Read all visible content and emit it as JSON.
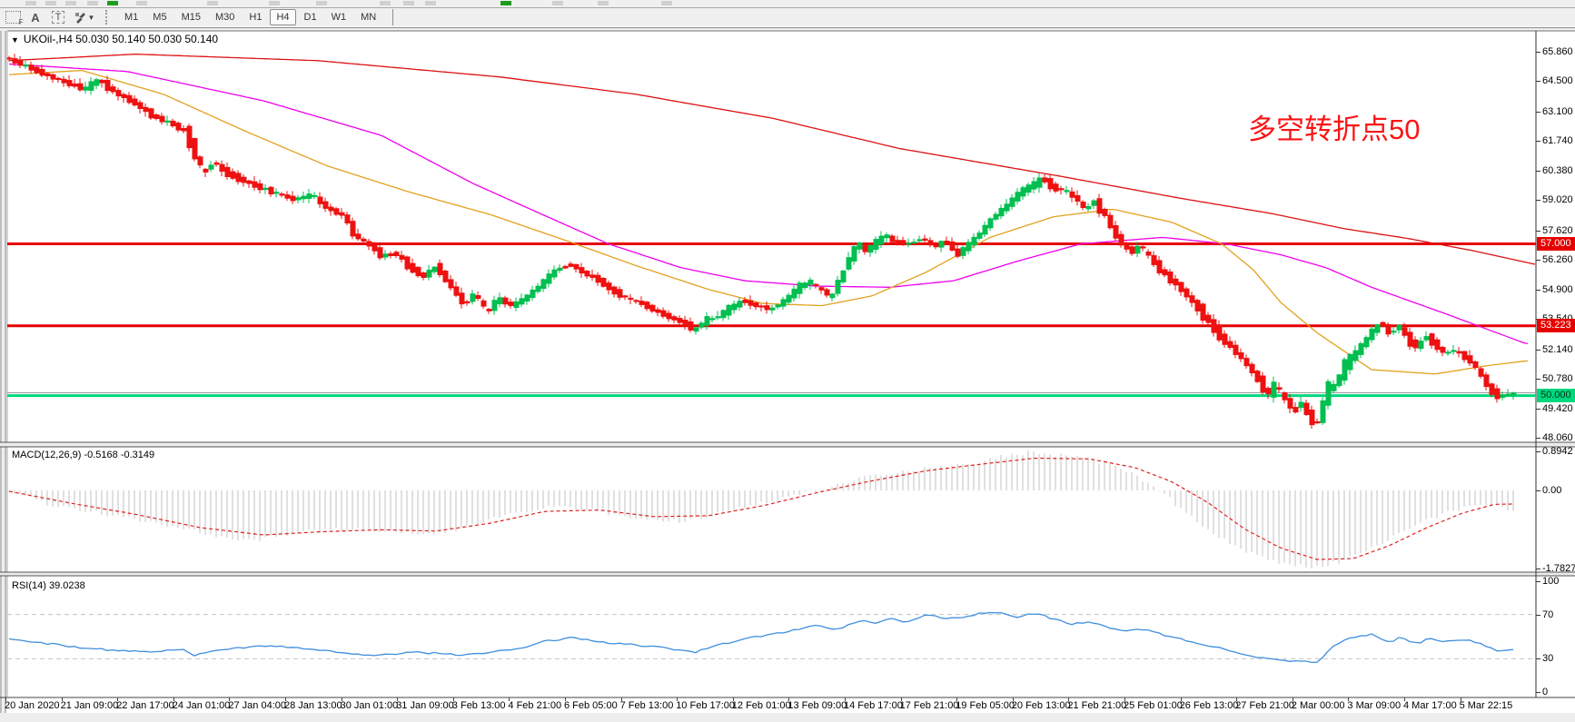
{
  "toolbar": {
    "tools": [
      {
        "name": "chart-template-tool",
        "glyph": "F"
      },
      {
        "name": "label-tool",
        "glyph": "A"
      },
      {
        "name": "text-tool",
        "glyph": "T"
      },
      {
        "name": "arrows-tool",
        "glyph": ""
      }
    ],
    "timeframes": [
      "M1",
      "M5",
      "M15",
      "M30",
      "H1",
      "H4",
      "D1",
      "W1",
      "MN"
    ],
    "active_timeframe": "H4"
  },
  "chart": {
    "title_text": "UKOil-,H4  50.030 50.140 50.030 50.140",
    "annotation_text": "多空转折点50",
    "y_ticks": [
      {
        "label": "65.860",
        "v": 65.86
      },
      {
        "label": "64.500",
        "v": 64.5
      },
      {
        "label": "63.100",
        "v": 63.1
      },
      {
        "label": "61.740",
        "v": 61.74
      },
      {
        "label": "60.380",
        "v": 60.38
      },
      {
        "label": "59.020",
        "v": 59.02
      },
      {
        "label": "57.620",
        "v": 57.62
      },
      {
        "label": "56.260",
        "v": 56.26
      },
      {
        "label": "54.900",
        "v": 54.9
      },
      {
        "label": "53.540",
        "v": 53.54
      },
      {
        "label": "52.140",
        "v": 52.14
      },
      {
        "label": "50.780",
        "v": 50.78
      },
      {
        "label": "49.420",
        "v": 49.42
      },
      {
        "label": "48.060",
        "v": 48.06
      }
    ],
    "levels": [
      {
        "label": "57.000",
        "v": 57.0,
        "color": "#e60000",
        "text_color": "#ffffff"
      },
      {
        "label": "53.223",
        "v": 53.223,
        "color": "#e60000",
        "text_color": "#ffffff"
      },
      {
        "label": "50.000",
        "v": 50.0,
        "color": "#00d87d",
        "text_color": "#00331a"
      }
    ],
    "bid_line": {
      "v": 50.14,
      "color": "#9a9a9a"
    }
  },
  "macd": {
    "label": "MACD(12,26,9) -0.5168 -0.3149",
    "y_ticks": [
      {
        "label": "0.8942",
        "v": 0.8942
      },
      {
        "label": "0.00",
        "v": 0
      },
      {
        "label": "-1.7827",
        "v": -1.7827
      }
    ]
  },
  "rsi": {
    "label": "RSI(14) 39.0238",
    "y_ticks": [
      {
        "label": "100",
        "v": 100
      },
      {
        "label": "70",
        "v": 70
      },
      {
        "label": "30",
        "v": 30
      },
      {
        "label": "0",
        "v": 0
      }
    ],
    "dashed_levels": [
      70,
      30
    ]
  },
  "time_axis": [
    "20 Jan 2020",
    "21 Jan 09:00",
    "22 Jan 17:00",
    "24 Jan 01:00",
    "27 Jan 04:00",
    "28 Jan 13:00",
    "30 Jan 01:00",
    "31 Jan 09:00",
    "3 Feb 13:00",
    "4 Feb 21:00",
    "6 Feb 05:00",
    "7 Feb 13:00",
    "10 Feb 17:00",
    "12 Feb 01:00",
    "13 Feb 09:00",
    "14 Feb 17:00",
    "17 Feb 21:00",
    "19 Feb 05:00",
    "20 Feb 13:00",
    "21 Feb 21:00",
    "25 Feb 01:00",
    "26 Feb 13:00",
    "27 Feb 21:00",
    "2 Mar 00:00",
    "3 Mar 09:00",
    "4 Mar 17:00",
    "5 Mar 22:15"
  ],
  "colors": {
    "candle_up": "#00bf50",
    "candle_down": "#ee1111",
    "ma_fast": "#e3a11e",
    "ma_mid": "#ee00ee",
    "ma_slow": "#dd1111",
    "macd_hist": "#c2c2c2",
    "macd_signal": "#e02020",
    "rsi_line": "#3f8ede",
    "rsi_dash": "#c4c4c4"
  },
  "chart_data": {
    "type": "candlestick",
    "symbol_period": "UKOil-,H4",
    "ohlc_current": {
      "open": 50.03,
      "high": 50.14,
      "low": 50.03,
      "close": 50.14
    },
    "price_path_anchors": [
      [
        10,
        65.55
      ],
      [
        30,
        65.2
      ],
      [
        55,
        64.75
      ],
      [
        80,
        64.35
      ],
      [
        95,
        64.15
      ],
      [
        110,
        64.55
      ],
      [
        130,
        63.95
      ],
      [
        150,
        63.5
      ],
      [
        170,
        62.9
      ],
      [
        190,
        62.55
      ],
      [
        205,
        62.2
      ],
      [
        215,
        61.3
      ],
      [
        225,
        60.35
      ],
      [
        238,
        60.7
      ],
      [
        252,
        60.25
      ],
      [
        268,
        59.95
      ],
      [
        285,
        59.65
      ],
      [
        305,
        59.35
      ],
      [
        325,
        59.05
      ],
      [
        345,
        59.25
      ],
      [
        362,
        58.65
      ],
      [
        380,
        58.3
      ],
      [
        392,
        57.4
      ],
      [
        408,
        56.95
      ],
      [
        422,
        56.45
      ],
      [
        438,
        56.55
      ],
      [
        452,
        55.95
      ],
      [
        468,
        55.5
      ],
      [
        482,
        55.95
      ],
      [
        498,
        55.05
      ],
      [
        512,
        54.25
      ],
      [
        524,
        54.65
      ],
      [
        538,
        53.95
      ],
      [
        552,
        54.45
      ],
      [
        566,
        54.15
      ],
      [
        582,
        54.55
      ],
      [
        598,
        55.15
      ],
      [
        614,
        55.8
      ],
      [
        630,
        56.05
      ],
      [
        645,
        55.65
      ],
      [
        660,
        55.35
      ],
      [
        676,
        54.85
      ],
      [
        692,
        54.5
      ],
      [
        708,
        54.25
      ],
      [
        724,
        53.9
      ],
      [
        740,
        53.6
      ],
      [
        755,
        53.35
      ],
      [
        766,
        53.05
      ],
      [
        778,
        53.45
      ],
      [
        792,
        53.65
      ],
      [
        806,
        54.05
      ],
      [
        820,
        54.35
      ],
      [
        835,
        54.15
      ],
      [
        850,
        54.0
      ],
      [
        865,
        54.35
      ],
      [
        880,
        54.95
      ],
      [
        893,
        55.25
      ],
      [
        905,
        54.9
      ],
      [
        916,
        54.6
      ],
      [
        926,
        55.3
      ],
      [
        936,
        56.3
      ],
      [
        946,
        56.9
      ],
      [
        956,
        56.7
      ],
      [
        966,
        57.05
      ],
      [
        976,
        57.35
      ],
      [
        988,
        57.1
      ],
      [
        1002,
        57.0
      ],
      [
        1016,
        57.25
      ],
      [
        1030,
        56.9
      ],
      [
        1044,
        57.1
      ],
      [
        1056,
        56.5
      ],
      [
        1068,
        56.95
      ],
      [
        1082,
        57.55
      ],
      [
        1096,
        58.25
      ],
      [
        1110,
        58.75
      ],
      [
        1124,
        59.35
      ],
      [
        1138,
        59.7
      ],
      [
        1150,
        59.95
      ],
      [
        1162,
        59.6
      ],
      [
        1174,
        59.45
      ],
      [
        1186,
        59.1
      ],
      [
        1196,
        58.6
      ],
      [
        1206,
        58.95
      ],
      [
        1218,
        58.35
      ],
      [
        1228,
        57.55
      ],
      [
        1238,
        56.95
      ],
      [
        1248,
        56.65
      ],
      [
        1258,
        56.85
      ],
      [
        1268,
        56.35
      ],
      [
        1278,
        55.85
      ],
      [
        1288,
        55.45
      ],
      [
        1298,
        55.1
      ],
      [
        1308,
        54.65
      ],
      [
        1318,
        54.15
      ],
      [
        1328,
        53.65
      ],
      [
        1338,
        53.1
      ],
      [
        1348,
        52.6
      ],
      [
        1358,
        52.2
      ],
      [
        1368,
        51.75
      ],
      [
        1378,
        51.25
      ],
      [
        1388,
        50.65
      ],
      [
        1398,
        50.1
      ],
      [
        1406,
        50.45
      ],
      [
        1416,
        49.85
      ],
      [
        1426,
        49.35
      ],
      [
        1434,
        49.65
      ],
      [
        1444,
        49.0
      ],
      [
        1452,
        48.7
      ],
      [
        1462,
        50.1
      ],
      [
        1472,
        50.55
      ],
      [
        1482,
        51.35
      ],
      [
        1492,
        51.85
      ],
      [
        1502,
        52.35
      ],
      [
        1512,
        52.95
      ],
      [
        1522,
        53.3
      ],
      [
        1532,
        52.9
      ],
      [
        1542,
        53.2
      ],
      [
        1552,
        52.6
      ],
      [
        1562,
        52.25
      ],
      [
        1572,
        52.75
      ],
      [
        1582,
        52.35
      ],
      [
        1592,
        51.95
      ],
      [
        1602,
        52.1
      ],
      [
        1612,
        51.85
      ],
      [
        1622,
        51.55
      ],
      [
        1632,
        50.95
      ],
      [
        1642,
        50.3
      ],
      [
        1652,
        49.95
      ],
      [
        1660,
        50.05
      ],
      [
        1670,
        50.1
      ]
    ],
    "ma_fast_anchors": [
      [
        8,
        64.8
      ],
      [
        90,
        65.0
      ],
      [
        180,
        63.9
      ],
      [
        270,
        62.2
      ],
      [
        360,
        60.6
      ],
      [
        450,
        59.4
      ],
      [
        540,
        58.35
      ],
      [
        620,
        57.2
      ],
      [
        700,
        56.0
      ],
      [
        780,
        54.9
      ],
      [
        840,
        54.25
      ],
      [
        905,
        54.15
      ],
      [
        960,
        54.6
      ],
      [
        1020,
        55.7
      ],
      [
        1090,
        57.3
      ],
      [
        1160,
        58.25
      ],
      [
        1225,
        58.6
      ],
      [
        1290,
        58.0
      ],
      [
        1345,
        57.0
      ],
      [
        1380,
        55.8
      ],
      [
        1410,
        54.3
      ],
      [
        1450,
        52.9
      ],
      [
        1510,
        51.2
      ],
      [
        1580,
        51.0
      ],
      [
        1640,
        51.4
      ],
      [
        1680,
        51.6
      ]
    ],
    "ma_mid_anchors": [
      [
        8,
        65.3
      ],
      [
        140,
        64.95
      ],
      [
        290,
        63.6
      ],
      [
        420,
        62.0
      ],
      [
        520,
        59.8
      ],
      [
        600,
        58.3
      ],
      [
        670,
        57.0
      ],
      [
        750,
        55.9
      ],
      [
        820,
        55.3
      ],
      [
        900,
        55.05
      ],
      [
        980,
        55.0
      ],
      [
        1050,
        55.3
      ],
      [
        1120,
        56.2
      ],
      [
        1190,
        57.0
      ],
      [
        1280,
        57.3
      ],
      [
        1350,
        57.0
      ],
      [
        1410,
        56.5
      ],
      [
        1460,
        55.9
      ],
      [
        1510,
        55.0
      ],
      [
        1590,
        53.8
      ],
      [
        1680,
        52.4
      ]
    ],
    "ma_slow_anchors": [
      [
        8,
        65.45
      ],
      [
        150,
        65.75
      ],
      [
        350,
        65.45
      ],
      [
        550,
        64.7
      ],
      [
        700,
        63.9
      ],
      [
        850,
        62.8
      ],
      [
        990,
        61.4
      ],
      [
        1170,
        60.1
      ],
      [
        1300,
        59.1
      ],
      [
        1400,
        58.4
      ],
      [
        1480,
        57.7
      ],
      [
        1550,
        57.25
      ],
      [
        1620,
        56.7
      ],
      [
        1691,
        56.05
      ]
    ],
    "macd_hist_anchors": [
      [
        10,
        -0.05
      ],
      [
        60,
        -0.35
      ],
      [
        120,
        -0.55
      ],
      [
        180,
        -0.78
      ],
      [
        240,
        -1.05
      ],
      [
        280,
        -1.15
      ],
      [
        330,
        -0.95
      ],
      [
        390,
        -0.88
      ],
      [
        440,
        -1.0
      ],
      [
        500,
        -0.92
      ],
      [
        560,
        -0.55
      ],
      [
        610,
        -0.35
      ],
      [
        650,
        -0.45
      ],
      [
        700,
        -0.62
      ],
      [
        750,
        -0.72
      ],
      [
        800,
        -0.5
      ],
      [
        840,
        -0.28
      ],
      [
        880,
        -0.1
      ],
      [
        920,
        0.12
      ],
      [
        960,
        0.35
      ],
      [
        1000,
        0.45
      ],
      [
        1040,
        0.55
      ],
      [
        1075,
        0.62
      ],
      [
        1105,
        0.78
      ],
      [
        1135,
        0.88
      ],
      [
        1165,
        0.82
      ],
      [
        1200,
        0.72
      ],
      [
        1240,
        0.45
      ],
      [
        1270,
        0.12
      ],
      [
        1300,
        -0.42
      ],
      [
        1330,
        -0.92
      ],
      [
        1360,
        -1.3
      ],
      [
        1390,
        -1.55
      ],
      [
        1420,
        -1.7
      ],
      [
        1450,
        -1.76
      ],
      [
        1480,
        -1.6
      ],
      [
        1510,
        -1.32
      ],
      [
        1540,
        -1.0
      ],
      [
        1570,
        -0.7
      ],
      [
        1600,
        -0.46
      ],
      [
        1630,
        -0.3
      ],
      [
        1650,
        -0.36
      ],
      [
        1670,
        -0.52
      ]
    ],
    "macd_signal_anchors": [
      [
        10,
        -0.02
      ],
      [
        80,
        -0.3
      ],
      [
        150,
        -0.55
      ],
      [
        220,
        -0.85
      ],
      [
        290,
        -1.02
      ],
      [
        350,
        -0.95
      ],
      [
        420,
        -0.9
      ],
      [
        480,
        -0.93
      ],
      [
        540,
        -0.75
      ],
      [
        600,
        -0.48
      ],
      [
        660,
        -0.45
      ],
      [
        720,
        -0.6
      ],
      [
        780,
        -0.58
      ],
      [
        840,
        -0.35
      ],
      [
        900,
        -0.05
      ],
      [
        960,
        0.22
      ],
      [
        1020,
        0.45
      ],
      [
        1080,
        0.6
      ],
      [
        1140,
        0.74
      ],
      [
        1200,
        0.72
      ],
      [
        1250,
        0.52
      ],
      [
        1290,
        0.2
      ],
      [
        1330,
        -0.28
      ],
      [
        1370,
        -0.88
      ],
      [
        1410,
        -1.32
      ],
      [
        1450,
        -1.58
      ],
      [
        1490,
        -1.56
      ],
      [
        1530,
        -1.26
      ],
      [
        1570,
        -0.86
      ],
      [
        1610,
        -0.52
      ],
      [
        1645,
        -0.32
      ],
      [
        1670,
        -0.31
      ]
    ],
    "rsi_anchors": [
      [
        10,
        48
      ],
      [
        40,
        45
      ],
      [
        80,
        41
      ],
      [
        120,
        38
      ],
      [
        160,
        36
      ],
      [
        200,
        39
      ],
      [
        215,
        33
      ],
      [
        230,
        36
      ],
      [
        260,
        40
      ],
      [
        300,
        42
      ],
      [
        330,
        40
      ],
      [
        360,
        37
      ],
      [
        390,
        34
      ],
      [
        420,
        33
      ],
      [
        450,
        36
      ],
      [
        480,
        35
      ],
      [
        510,
        33
      ],
      [
        540,
        36
      ],
      [
        570,
        39
      ],
      [
        600,
        46
      ],
      [
        630,
        49
      ],
      [
        660,
        45
      ],
      [
        690,
        43
      ],
      [
        720,
        41
      ],
      [
        750,
        38
      ],
      [
        765,
        36
      ],
      [
        790,
        42
      ],
      [
        820,
        48
      ],
      [
        850,
        52
      ],
      [
        880,
        57
      ],
      [
        900,
        60
      ],
      [
        920,
        56
      ],
      [
        935,
        61
      ],
      [
        950,
        64
      ],
      [
        965,
        62
      ],
      [
        980,
        66
      ],
      [
        1000,
        63
      ],
      [
        1020,
        70
      ],
      [
        1040,
        66
      ],
      [
        1060,
        68
      ],
      [
        1080,
        71
      ],
      [
        1100,
        72
      ],
      [
        1120,
        68
      ],
      [
        1140,
        71
      ],
      [
        1160,
        66
      ],
      [
        1180,
        61
      ],
      [
        1200,
        64
      ],
      [
        1220,
        58
      ],
      [
        1240,
        55
      ],
      [
        1260,
        57
      ],
      [
        1280,
        52
      ],
      [
        1300,
        48
      ],
      [
        1320,
        44
      ],
      [
        1340,
        40
      ],
      [
        1360,
        36
      ],
      [
        1380,
        32
      ],
      [
        1400,
        30
      ],
      [
        1420,
        28
      ],
      [
        1440,
        27
      ],
      [
        1452,
        26
      ],
      [
        1465,
        40
      ],
      [
        1480,
        47
      ],
      [
        1495,
        50
      ],
      [
        1510,
        52
      ],
      [
        1522,
        48
      ],
      [
        1532,
        45
      ],
      [
        1542,
        50
      ],
      [
        1552,
        46
      ],
      [
        1562,
        44
      ],
      [
        1572,
        49
      ],
      [
        1585,
        45
      ],
      [
        1600,
        46
      ],
      [
        1615,
        47
      ],
      [
        1630,
        44
      ],
      [
        1645,
        38
      ],
      [
        1655,
        37
      ],
      [
        1668,
        39
      ]
    ]
  }
}
